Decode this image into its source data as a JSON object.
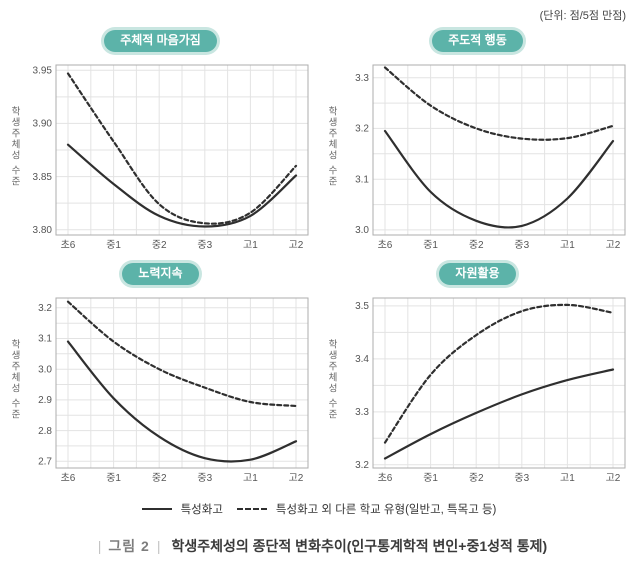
{
  "unit_note": "(단위: 점/5점 만점)",
  "y_axis_label": "학생주체성 수준",
  "x_categories": [
    "초6",
    "중1",
    "중2",
    "중3",
    "고1",
    "고2"
  ],
  "legend": {
    "solid_label": "특성화고",
    "dashed_label": "특성화고 외 다른 학교 유형(일반고, 특목고 등)"
  },
  "caption": {
    "prefix": "그림 2",
    "text": "학생주체성의 종단적 변화추이(인구통계학적 변인+중1성적 통제)"
  },
  "colors": {
    "line": "#2f2f2f",
    "grid": "#e3e3e3",
    "frame": "#adadad",
    "tick_text": "#555555",
    "badge_bg": "#5cb3a9",
    "badge_ring": "#c9e6e1"
  },
  "chart_data": [
    {
      "type": "line",
      "title": "주체적 마음가짐",
      "ylim": [
        3.795,
        3.955
      ],
      "ytick_values": [
        3.8,
        3.85,
        3.9,
        3.95
      ],
      "ytick_labels": [
        "3.80",
        "3.85",
        "3.90",
        "3.95"
      ],
      "minor_step": 0.025,
      "series": [
        {
          "name": "특성화고",
          "style": "solid",
          "values": [
            3.88,
            3.843,
            3.813,
            3.803,
            3.813,
            3.851
          ]
        },
        {
          "name": "특성화고 외 다른 학교 유형(일반고, 특목고 등)",
          "style": "dashed",
          "values": [
            3.947,
            3.883,
            3.824,
            3.806,
            3.816,
            3.86
          ]
        }
      ]
    },
    {
      "type": "line",
      "title": "주도적 행동",
      "ylim": [
        2.99,
        3.325
      ],
      "ytick_values": [
        3.0,
        3.1,
        3.2,
        3.3
      ],
      "ytick_labels": [
        "3.0",
        "3.1",
        "3.2",
        "3.3"
      ],
      "minor_step": 0.05,
      "series": [
        {
          "name": "특성화고",
          "style": "solid",
          "values": [
            3.195,
            3.075,
            3.018,
            3.008,
            3.062,
            3.175
          ]
        },
        {
          "name": "특성화고 외 다른 학교 유형(일반고, 특목고 등)",
          "style": "dashed",
          "values": [
            3.32,
            3.245,
            3.2,
            3.18,
            3.181,
            3.205
          ]
        }
      ]
    },
    {
      "type": "line",
      "title": "노력지속",
      "ylim": [
        2.678,
        3.232
      ],
      "ytick_values": [
        2.7,
        2.8,
        2.9,
        3.0,
        3.1,
        3.2
      ],
      "ytick_labels": [
        "2.7",
        "2.8",
        "2.9",
        "3.0",
        "3.1",
        "3.2"
      ],
      "minor_step": 0.05,
      "series": [
        {
          "name": "특성화고",
          "style": "solid",
          "values": [
            3.09,
            2.905,
            2.78,
            2.71,
            2.705,
            2.765
          ]
        },
        {
          "name": "특성화고 외 다른 학교 유형(일반고, 특목고 등)",
          "style": "dashed",
          "values": [
            3.22,
            3.09,
            3.0,
            2.94,
            2.893,
            2.88
          ]
        }
      ]
    },
    {
      "type": "line",
      "title": "자원활용",
      "ylim": [
        3.194,
        3.515
      ],
      "ytick_values": [
        3.2,
        3.3,
        3.4,
        3.5
      ],
      "ytick_labels": [
        "3.2",
        "3.3",
        "3.4",
        "3.5"
      ],
      "minor_step": 0.05,
      "series": [
        {
          "name": "특성화고",
          "style": "solid",
          "values": [
            3.212,
            3.258,
            3.298,
            3.333,
            3.36,
            3.38
          ]
        },
        {
          "name": "특성화고 외 다른 학교 유형(일반고, 특목고 등)",
          "style": "dashed",
          "values": [
            3.242,
            3.37,
            3.445,
            3.49,
            3.502,
            3.487
          ]
        }
      ]
    }
  ]
}
